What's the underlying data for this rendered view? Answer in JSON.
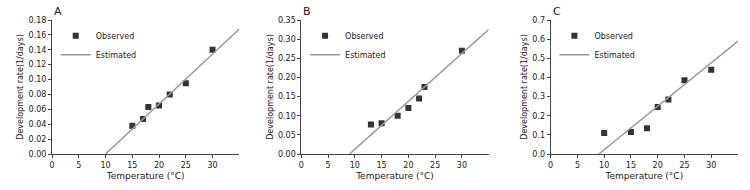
{
  "chart_data": [
    {
      "type": "scatter",
      "title": "A",
      "xlabel": "Temperature (°C)",
      "ylabel": "Development rate(1/days)",
      "xlim": [
        0,
        35
      ],
      "xticks": [
        0,
        5,
        10,
        15,
        20,
        25,
        30
      ],
      "ylim": [
        0.0,
        0.18
      ],
      "yticks": [
        {
          "value": 0.0,
          "label": "0.00"
        },
        0.02,
        0.04,
        0.06,
        0.08,
        {
          "value": 0.1,
          "label": "0.10"
        },
        0.12,
        0.14,
        0.16,
        0.18
      ],
      "grid": false,
      "legend": "upper left",
      "series": [
        {
          "name": "Observed",
          "type": "scatter",
          "marker": "square",
          "color": "#333333",
          "x": [
            15,
            17,
            18,
            20,
            22,
            25,
            30
          ],
          "values": [
            0.038,
            0.047,
            0.063,
            0.065,
            0.08,
            0.095,
            0.14
          ]
        },
        {
          "name": "Estimated",
          "type": "line",
          "line_style": "solid",
          "color": "#999999",
          "x": [
            10,
            35
          ],
          "values": [
            0.0,
            0.168
          ]
        }
      ]
    },
    {
      "type": "scatter",
      "title": "B",
      "xlabel": "Temperature (°C)",
      "ylabel": "Development rate(1/days)",
      "xlim": [
        0,
        35
      ],
      "xticks": [
        0,
        5,
        10,
        15,
        20,
        25,
        30
      ],
      "ylim": [
        0.0,
        0.35
      ],
      "yticks": [
        {
          "value": 0.0,
          "label": "0.00"
        },
        0.05,
        {
          "value": 0.1,
          "label": "0.10"
        },
        0.15,
        {
          "value": 0.2,
          "label": "0.20"
        },
        0.25,
        {
          "value": 0.3,
          "label": "0.30"
        },
        0.35
      ],
      "grid": false,
      "legend": "upper left",
      "series": [
        {
          "name": "Observed",
          "type": "scatter",
          "marker": "square",
          "color": "#333333",
          "x": [
            13,
            15,
            18,
            20,
            22,
            23,
            30
          ],
          "values": [
            0.077,
            0.08,
            0.1,
            0.12,
            0.145,
            0.175,
            0.27
          ]
        },
        {
          "name": "Estimated",
          "type": "line",
          "line_style": "solid",
          "color": "#999999",
          "x": [
            9,
            35
          ],
          "values": [
            0.0,
            0.325
          ]
        }
      ]
    },
    {
      "type": "scatter",
      "title": "C",
      "xlabel": "Temperature (°C)",
      "ylabel": "Development rate(1/days)",
      "xlim": [
        0,
        35
      ],
      "xticks": [
        0,
        5,
        10,
        15,
        20,
        25,
        30
      ],
      "ylim": [
        0.0,
        0.7
      ],
      "yticks": [
        {
          "value": 0.0,
          "label": "0.0"
        },
        0.1,
        0.2,
        0.3,
        0.4,
        0.5,
        0.6,
        0.7
      ],
      "grid": false,
      "legend": "upper left",
      "series": [
        {
          "name": "Observed",
          "type": "scatter",
          "marker": "square",
          "color": "#333333",
          "x": [
            10,
            15,
            18,
            20,
            22,
            25,
            30
          ],
          "values": [
            0.11,
            0.115,
            0.135,
            0.245,
            0.285,
            0.385,
            0.44
          ]
        },
        {
          "name": "Estimated",
          "type": "line",
          "line_style": "solid",
          "color": "#999999",
          "x": [
            9,
            35
          ],
          "values": [
            0.0,
            0.59
          ]
        }
      ]
    }
  ]
}
